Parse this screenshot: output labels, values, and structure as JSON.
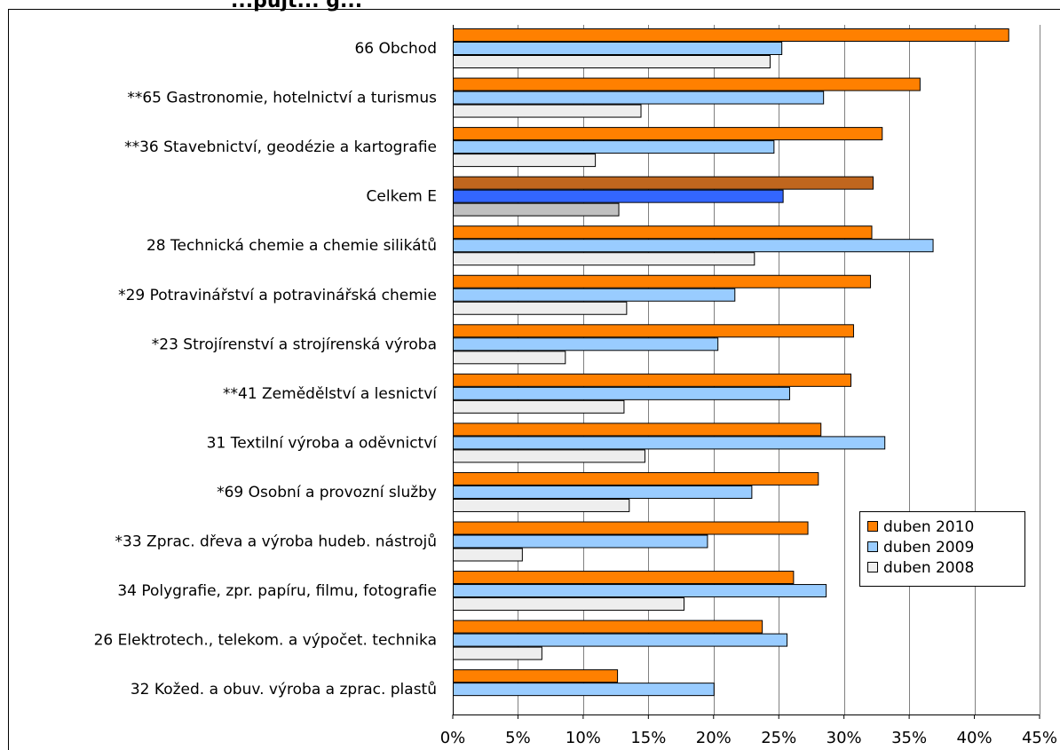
{
  "chart_data": {
    "type": "bar",
    "orientation": "horizontal",
    "categories": [
      "66 Obchod",
      "**65 Gastronomie, hotelnictví a turismus",
      "**36 Stavebnictví, geodézie a kartografie",
      "Celkem E",
      "28 Technická chemie a chemie silikátů",
      "*29 Potravinářství a potravinářská chemie",
      "*23 Strojírenství a strojírenská výroba",
      "**41 Zemědělství a lesnictví",
      "31 Textilní výroba a oděvnictví",
      "*69 Osobní a provozní služby",
      "*33 Zprac. dřeva a výroba hudeb. nástrojů",
      "34 Polygrafie, zpr. papíru, filmu, fotografie",
      "26 Elektrotech., telekom. a výpočet. technika",
      "32 Kožed. a obuv. výroba a zprac. plastů"
    ],
    "series": [
      {
        "name": "duben 2010",
        "color": "#ff8000",
        "highlight_color": "#c0661e",
        "values": [
          42.6,
          35.8,
          32.9,
          32.2,
          32.1,
          32.0,
          30.7,
          30.5,
          28.2,
          28.0,
          27.2,
          26.1,
          23.7,
          12.6
        ]
      },
      {
        "name": "duben 2009",
        "color": "#99ccff",
        "highlight_color": "#3366ff",
        "values": [
          25.2,
          28.4,
          24.6,
          25.3,
          36.8,
          21.6,
          20.3,
          25.8,
          33.1,
          22.9,
          19.5,
          28.6,
          25.6,
          20.0
        ]
      },
      {
        "name": "duben 2008",
        "color": "#eeeeee",
        "highlight_color": "#c0c0c0",
        "values": [
          24.3,
          14.4,
          10.9,
          12.7,
          23.1,
          13.3,
          8.6,
          13.1,
          14.7,
          13.5,
          5.3,
          17.7,
          6.8,
          null
        ]
      }
    ],
    "highlight_category": "Celkem E",
    "xlim": [
      0,
      45
    ],
    "xticks": [
      0,
      5,
      10,
      15,
      20,
      25,
      30,
      35,
      40,
      45
    ],
    "xtick_labels": [
      "0%",
      "5%",
      "10%",
      "15%",
      "20%",
      "25%",
      "30%",
      "35%",
      "40%",
      "45%"
    ],
    "grid": "vertical",
    "legend_position": "bottom-right",
    "title": "...pujt... g..."
  }
}
